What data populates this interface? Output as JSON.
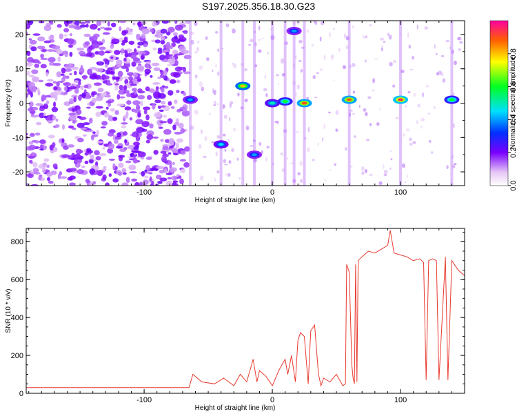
{
  "title": "S197.2025.356.18.30.G23",
  "chart_data": [
    {
      "type": "heatmap",
      "xlabel": "Height of straight line (km)",
      "ylabel": "Frequency (Hz)",
      "xlim": [
        -192,
        150
      ],
      "ylim": [
        -24,
        24
      ],
      "xticks": [
        -100,
        0,
        100
      ],
      "yticks": [
        -20,
        -10,
        0,
        10,
        20
      ],
      "colorbar": {
        "label": "Normalized spectral amplitude",
        "range": [
          0,
          1
        ],
        "ticks": [
          "0.0",
          "0.2",
          "0.4",
          "0.6",
          "0.8"
        ]
      },
      "features": [
        {
          "x": 17,
          "y": 21,
          "amplitude": 0.4
        },
        {
          "x": -23,
          "y": 5,
          "amplitude": 0.8
        },
        {
          "x": -64,
          "y": 1,
          "amplitude": 0.4
        },
        {
          "x": -40,
          "y": -12,
          "amplitude": 0.45
        },
        {
          "x": -14,
          "y": -15,
          "amplitude": 0.4
        },
        {
          "x": 0,
          "y": 0,
          "amplitude": 0.5
        },
        {
          "x": 10,
          "y": 0.5,
          "amplitude": 0.6
        },
        {
          "x": 25,
          "y": 0,
          "amplitude": 0.9
        },
        {
          "x": 60,
          "y": 1,
          "amplitude": 0.9
        },
        {
          "x": 100,
          "y": 1,
          "amplitude": 0.95
        },
        {
          "x": 140,
          "y": 1,
          "amplitude": 0.6
        }
      ]
    },
    {
      "type": "line",
      "xlabel": "Height of straight line (km)",
      "ylabel": "SNR (10 * v/v)",
      "xlim": [
        -192,
        150
      ],
      "ylim": [
        0,
        870
      ],
      "xticks": [
        -100,
        0,
        100
      ],
      "yticks": [
        0,
        200,
        400,
        600,
        800
      ],
      "series": [
        {
          "name": "SNR",
          "color": "#e8392e",
          "x": [
            -192,
            -160,
            -130,
            -100,
            -70,
            -65,
            -62,
            -55,
            -45,
            -38,
            -30,
            -25,
            -20,
            -15,
            -12,
            -10,
            -5,
            0,
            5,
            10,
            12,
            15,
            18,
            20,
            22,
            25,
            28,
            30,
            33,
            36,
            38,
            40,
            45,
            50,
            55,
            57,
            58,
            60,
            62,
            63,
            64,
            65,
            66,
            67,
            70,
            75,
            80,
            85,
            90,
            92,
            95,
            100,
            105,
            110,
            115,
            118,
            120,
            122,
            125,
            128,
            130,
            135,
            137,
            140,
            142,
            145,
            150
          ],
          "y": [
            30,
            30,
            30,
            30,
            30,
            30,
            100,
            60,
            50,
            80,
            40,
            100,
            60,
            180,
            60,
            120,
            90,
            40,
            120,
            180,
            100,
            200,
            60,
            280,
            320,
            300,
            50,
            330,
            360,
            100,
            40,
            80,
            60,
            100,
            40,
            50,
            680,
            640,
            150,
            80,
            50,
            680,
            60,
            700,
            720,
            750,
            740,
            760,
            780,
            860,
            740,
            730,
            720,
            700,
            710,
            690,
            70,
            700,
            710,
            700,
            70,
            720,
            70,
            700,
            680,
            650,
            620
          ]
        }
      ]
    }
  ]
}
